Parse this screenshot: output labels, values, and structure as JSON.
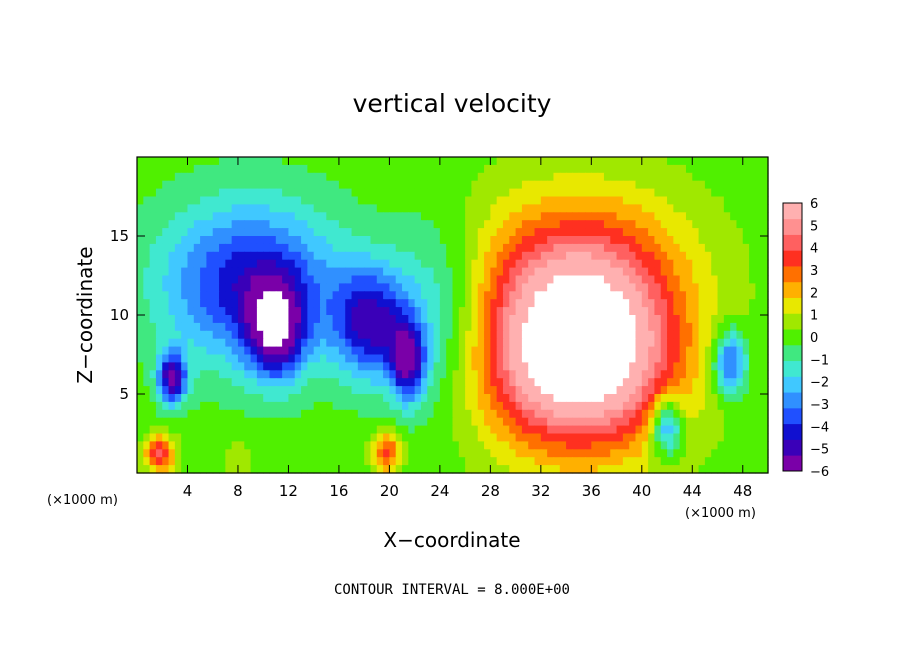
{
  "chart_data": {
    "type": "heatmap",
    "title": "vertical velocity",
    "xlabel": "X−coordinate",
    "ylabel": "Z−coordinate",
    "x_units_left": "(×1000 m)",
    "x_units_right": "(×1000 m)",
    "contour_note": "CONTOUR INTERVAL = 8.000E+00",
    "xlim": [
      0,
      50
    ],
    "ylim": [
      0,
      20
    ],
    "x_ticks": [
      4,
      8,
      12,
      16,
      20,
      24,
      28,
      32,
      36,
      40,
      44,
      48
    ],
    "x_tick_labels": [
      "4",
      "8",
      "12",
      "16",
      "20",
      "24",
      "28",
      "32",
      "36",
      "40",
      "44",
      "48"
    ],
    "y_ticks": [
      5,
      10,
      15
    ],
    "y_tick_labels": [
      "5",
      "10",
      "15"
    ],
    "colorbar": {
      "range": [
        -6,
        6
      ],
      "labels": [
        "6",
        "5",
        "4",
        "3",
        "2",
        "1",
        "0",
        "−1",
        "−2",
        "−3",
        "−4",
        "−5",
        "−6"
      ],
      "colors": [
        "#7a00a8",
        "#3a00b8",
        "#1010d0",
        "#2050ff",
        "#3090ff",
        "#40c8ff",
        "#40e8d0",
        "#40e880",
        "#50f000",
        "#a0e800",
        "#e8e800",
        "#ffb000",
        "#ff7000",
        "#ff3020",
        "#ff6060",
        "#ff9090",
        "#ffb0b0"
      ]
    },
    "features": [
      {
        "kind": "updraft",
        "x": 35,
        "z": 7.8,
        "sx": 7.5,
        "sz": 6.0,
        "w": 9.0
      },
      {
        "kind": "updraft",
        "x": 35,
        "z": 14,
        "sx": 9,
        "sz": 5,
        "w": 2.0
      },
      {
        "kind": "downdraft",
        "x": 9,
        "z": 12,
        "sx": 7,
        "sz": 5,
        "w": -4.5
      },
      {
        "kind": "downdraft",
        "x": 11,
        "z": 9,
        "sx": 2.2,
        "sz": 3,
        "w": -5.0
      },
      {
        "kind": "downdraft",
        "x": 18.5,
        "z": 9.5,
        "sx": 3,
        "sz": 3.5,
        "w": -4.5
      },
      {
        "kind": "downdraft",
        "x": 21.5,
        "z": 7,
        "sx": 1.4,
        "sz": 2.5,
        "w": -4.5
      },
      {
        "kind": "downdraft",
        "x": 2.8,
        "z": 6,
        "sx": 1.1,
        "sz": 1.6,
        "w": -5.5
      },
      {
        "kind": "downdraft",
        "x": 47,
        "z": 7,
        "sx": 1.3,
        "sz": 2.0,
        "w": -4.0
      },
      {
        "kind": "downdraft",
        "x": 24,
        "z": 10,
        "sx": 4,
        "sz": 6,
        "w": -2.0
      },
      {
        "kind": "updraft",
        "x": 1.8,
        "z": 1.2,
        "sx": 1.2,
        "sz": 1.2,
        "w": 4.0
      },
      {
        "kind": "updraft",
        "x": 19.8,
        "z": 1.3,
        "sx": 1.1,
        "sz": 1.3,
        "w": 3.5
      },
      {
        "kind": "updraft",
        "x": 8,
        "z": 1,
        "sx": 1.3,
        "sz": 1.0,
        "w": 1.0
      },
      {
        "kind": "downdraft",
        "x": 42,
        "z": 3,
        "sx": 1.2,
        "sz": 1.8,
        "w": -4.0
      }
    ]
  }
}
